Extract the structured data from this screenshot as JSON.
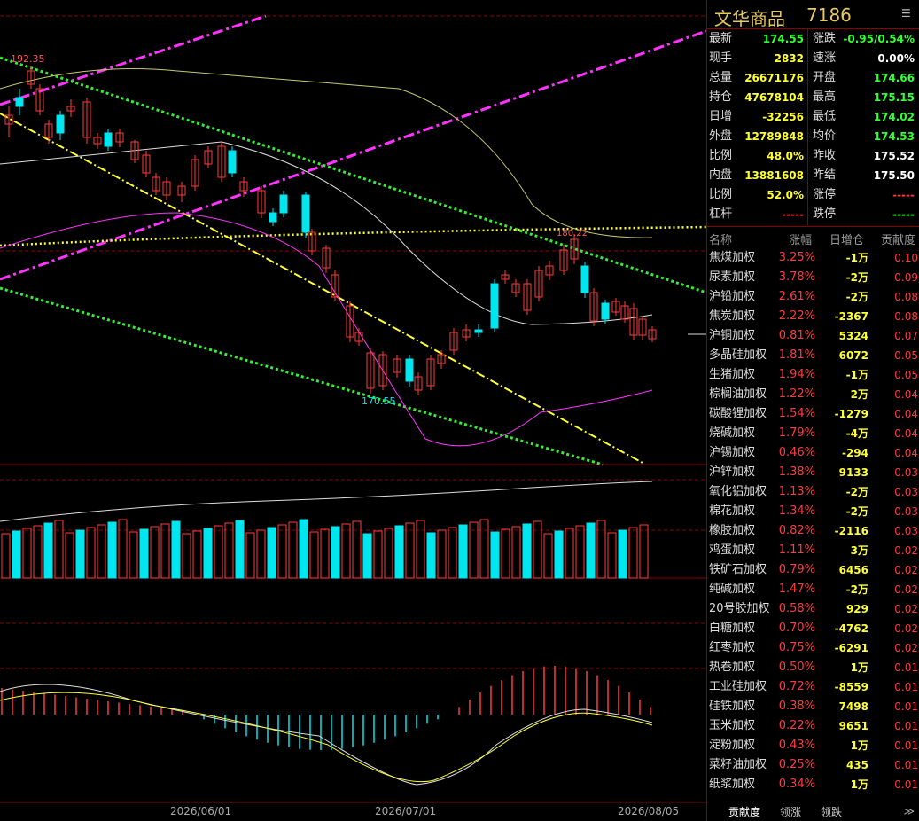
{
  "header": {
    "name": "文华商品",
    "code": "7186"
  },
  "quote_left": [
    {
      "label": "最新",
      "value": "174.55",
      "color": "#33ff33"
    },
    {
      "label": "现手",
      "value": "2832",
      "color": "#ffff33"
    },
    {
      "label": "总量",
      "value": "26671176",
      "color": "#ffff33"
    },
    {
      "label": "持仓",
      "value": "47678104",
      "color": "#ffff33"
    },
    {
      "label": "日增",
      "value": "-32256",
      "color": "#ffff33"
    },
    {
      "label": "外盘",
      "value": "12789848",
      "color": "#ffff33"
    },
    {
      "label": "比例",
      "value": "48.0%",
      "color": "#ffff33"
    },
    {
      "label": "内盘",
      "value": "13881608",
      "color": "#ffff33"
    },
    {
      "label": "比例",
      "value": "52.0%",
      "color": "#ffff33"
    },
    {
      "label": "杠杆",
      "value": "-----",
      "color": "#ff3b3b"
    }
  ],
  "quote_right": [
    {
      "label": "涨跌",
      "value": "-0.95/0.54%",
      "color": "#33ff33"
    },
    {
      "label": "速涨",
      "value": "0.00%",
      "color": "#ffffff"
    },
    {
      "label": "开盘",
      "value": "174.66",
      "color": "#33ff33"
    },
    {
      "label": "最高",
      "value": "175.15",
      "color": "#33ff33"
    },
    {
      "label": "最低",
      "value": "174.02",
      "color": "#33ff33"
    },
    {
      "label": "均价",
      "value": "174.53",
      "color": "#33ff33"
    },
    {
      "label": "昨收",
      "value": "175.52",
      "color": "#ffffff"
    },
    {
      "label": "昨结",
      "value": "175.50",
      "color": "#ffffff"
    },
    {
      "label": "涨停",
      "value": "-----",
      "color": "#ff3b3b"
    },
    {
      "label": "跌停",
      "value": "-----",
      "color": "#33ff33"
    }
  ],
  "list_header": {
    "name": "名称",
    "pct": "涨幅",
    "pos": "日增仓",
    "ctb": "贡献度"
  },
  "list": [
    {
      "name": "焦煤加权",
      "pct": "3.25%",
      "pos": "-1万",
      "ctb": "0.10",
      "pos_color": "#ffff33"
    },
    {
      "name": "尿素加权",
      "pct": "3.78%",
      "pos": "-2万",
      "ctb": "0.09",
      "pos_color": "#ffff33"
    },
    {
      "name": "沪铅加权",
      "pct": "2.61%",
      "pos": "-2万",
      "ctb": "0.08",
      "pos_color": "#ffff33"
    },
    {
      "name": "焦炭加权",
      "pct": "2.22%",
      "pos": "-2367",
      "ctb": "0.08",
      "pos_color": "#ffff33"
    },
    {
      "name": "沪铜加权",
      "pct": "0.81%",
      "pos": "5324",
      "ctb": "0.07",
      "pos_color": "#ffff33"
    },
    {
      "name": "多晶硅加权",
      "pct": "1.81%",
      "pos": "6072",
      "ctb": "0.05",
      "pos_color": "#ffff33"
    },
    {
      "name": "生猪加权",
      "pct": "1.94%",
      "pos": "-1万",
      "ctb": "0.05",
      "pos_color": "#ffff33"
    },
    {
      "name": "棕榈油加权",
      "pct": "1.22%",
      "pos": "2万",
      "ctb": "0.04",
      "pos_color": "#ffff33"
    },
    {
      "name": "碳酸锂加权",
      "pct": "1.54%",
      "pos": "-1279",
      "ctb": "0.04",
      "pos_color": "#ffff33"
    },
    {
      "name": "烧碱加权",
      "pct": "1.79%",
      "pos": "-4万",
      "ctb": "0.04",
      "pos_color": "#ffff33"
    },
    {
      "name": "沪锡加权",
      "pct": "0.46%",
      "pos": "-294",
      "ctb": "0.04",
      "pos_color": "#ffff33"
    },
    {
      "name": "沪锌加权",
      "pct": "1.38%",
      "pos": "9133",
      "ctb": "0.03",
      "pos_color": "#ffff33"
    },
    {
      "name": "氧化铝加权",
      "pct": "1.13%",
      "pos": "-2万",
      "ctb": "0.03",
      "pos_color": "#ffff33"
    },
    {
      "name": "棉花加权",
      "pct": "1.34%",
      "pos": "-2万",
      "ctb": "0.03",
      "pos_color": "#ffff33"
    },
    {
      "name": "橡胶加权",
      "pct": "0.82%",
      "pos": "-2116",
      "ctb": "0.03",
      "pos_color": "#ffff33"
    },
    {
      "name": "鸡蛋加权",
      "pct": "1.11%",
      "pos": "3万",
      "ctb": "0.02",
      "pos_color": "#ffff33"
    },
    {
      "name": "铁矿石加权",
      "pct": "0.79%",
      "pos": "6456",
      "ctb": "0.02",
      "pos_color": "#ffff33"
    },
    {
      "name": "纯碱加权",
      "pct": "1.47%",
      "pos": "-2万",
      "ctb": "0.02",
      "pos_color": "#ffff33"
    },
    {
      "name": "20号胶加权",
      "pct": "0.58%",
      "pos": "929",
      "ctb": "0.02",
      "pos_color": "#ffff33"
    },
    {
      "name": "白糖加权",
      "pct": "0.70%",
      "pos": "-4762",
      "ctb": "0.02",
      "pos_color": "#ffff33"
    },
    {
      "name": "红枣加权",
      "pct": "0.75%",
      "pos": "-6291",
      "ctb": "0.02",
      "pos_color": "#ffff33"
    },
    {
      "name": "热卷加权",
      "pct": "0.50%",
      "pos": "1万",
      "ctb": "0.01",
      "pos_color": "#ffff33"
    },
    {
      "name": "工业硅加权",
      "pct": "0.72%",
      "pos": "-8559",
      "ctb": "0.01",
      "pos_color": "#ffff33"
    },
    {
      "name": "硅铁加权",
      "pct": "0.38%",
      "pos": "7498",
      "ctb": "0.01",
      "pos_color": "#ffff33"
    },
    {
      "name": "玉米加权",
      "pct": "0.22%",
      "pos": "9651",
      "ctb": "0.01",
      "pos_color": "#ffff33"
    },
    {
      "name": "淀粉加权",
      "pct": "0.43%",
      "pos": "1万",
      "ctb": "0.01",
      "pos_color": "#ffff33"
    },
    {
      "name": "菜籽油加权",
      "pct": "0.25%",
      "pos": "435",
      "ctb": "0.01",
      "pos_color": "#ffff33"
    },
    {
      "name": "纸浆加权",
      "pct": "0.34%",
      "pos": "1万",
      "ctb": "0.01",
      "pos_color": "#ffff33"
    }
  ],
  "tabs": [
    "贡献度",
    "领涨",
    "领跌"
  ],
  "chart": {
    "high_label": "192.35",
    "low_label": "170.55",
    "mid_label": "180.22",
    "dates": [
      "2026/06/01",
      "2026/07/01",
      "2026/08/05"
    ],
    "colors": {
      "up": "#ff3b3b",
      "down": "#00e5ee",
      "magenta": "#ff33ff",
      "green": "#33ee33",
      "yellow": "#ffff33"
    }
  }
}
